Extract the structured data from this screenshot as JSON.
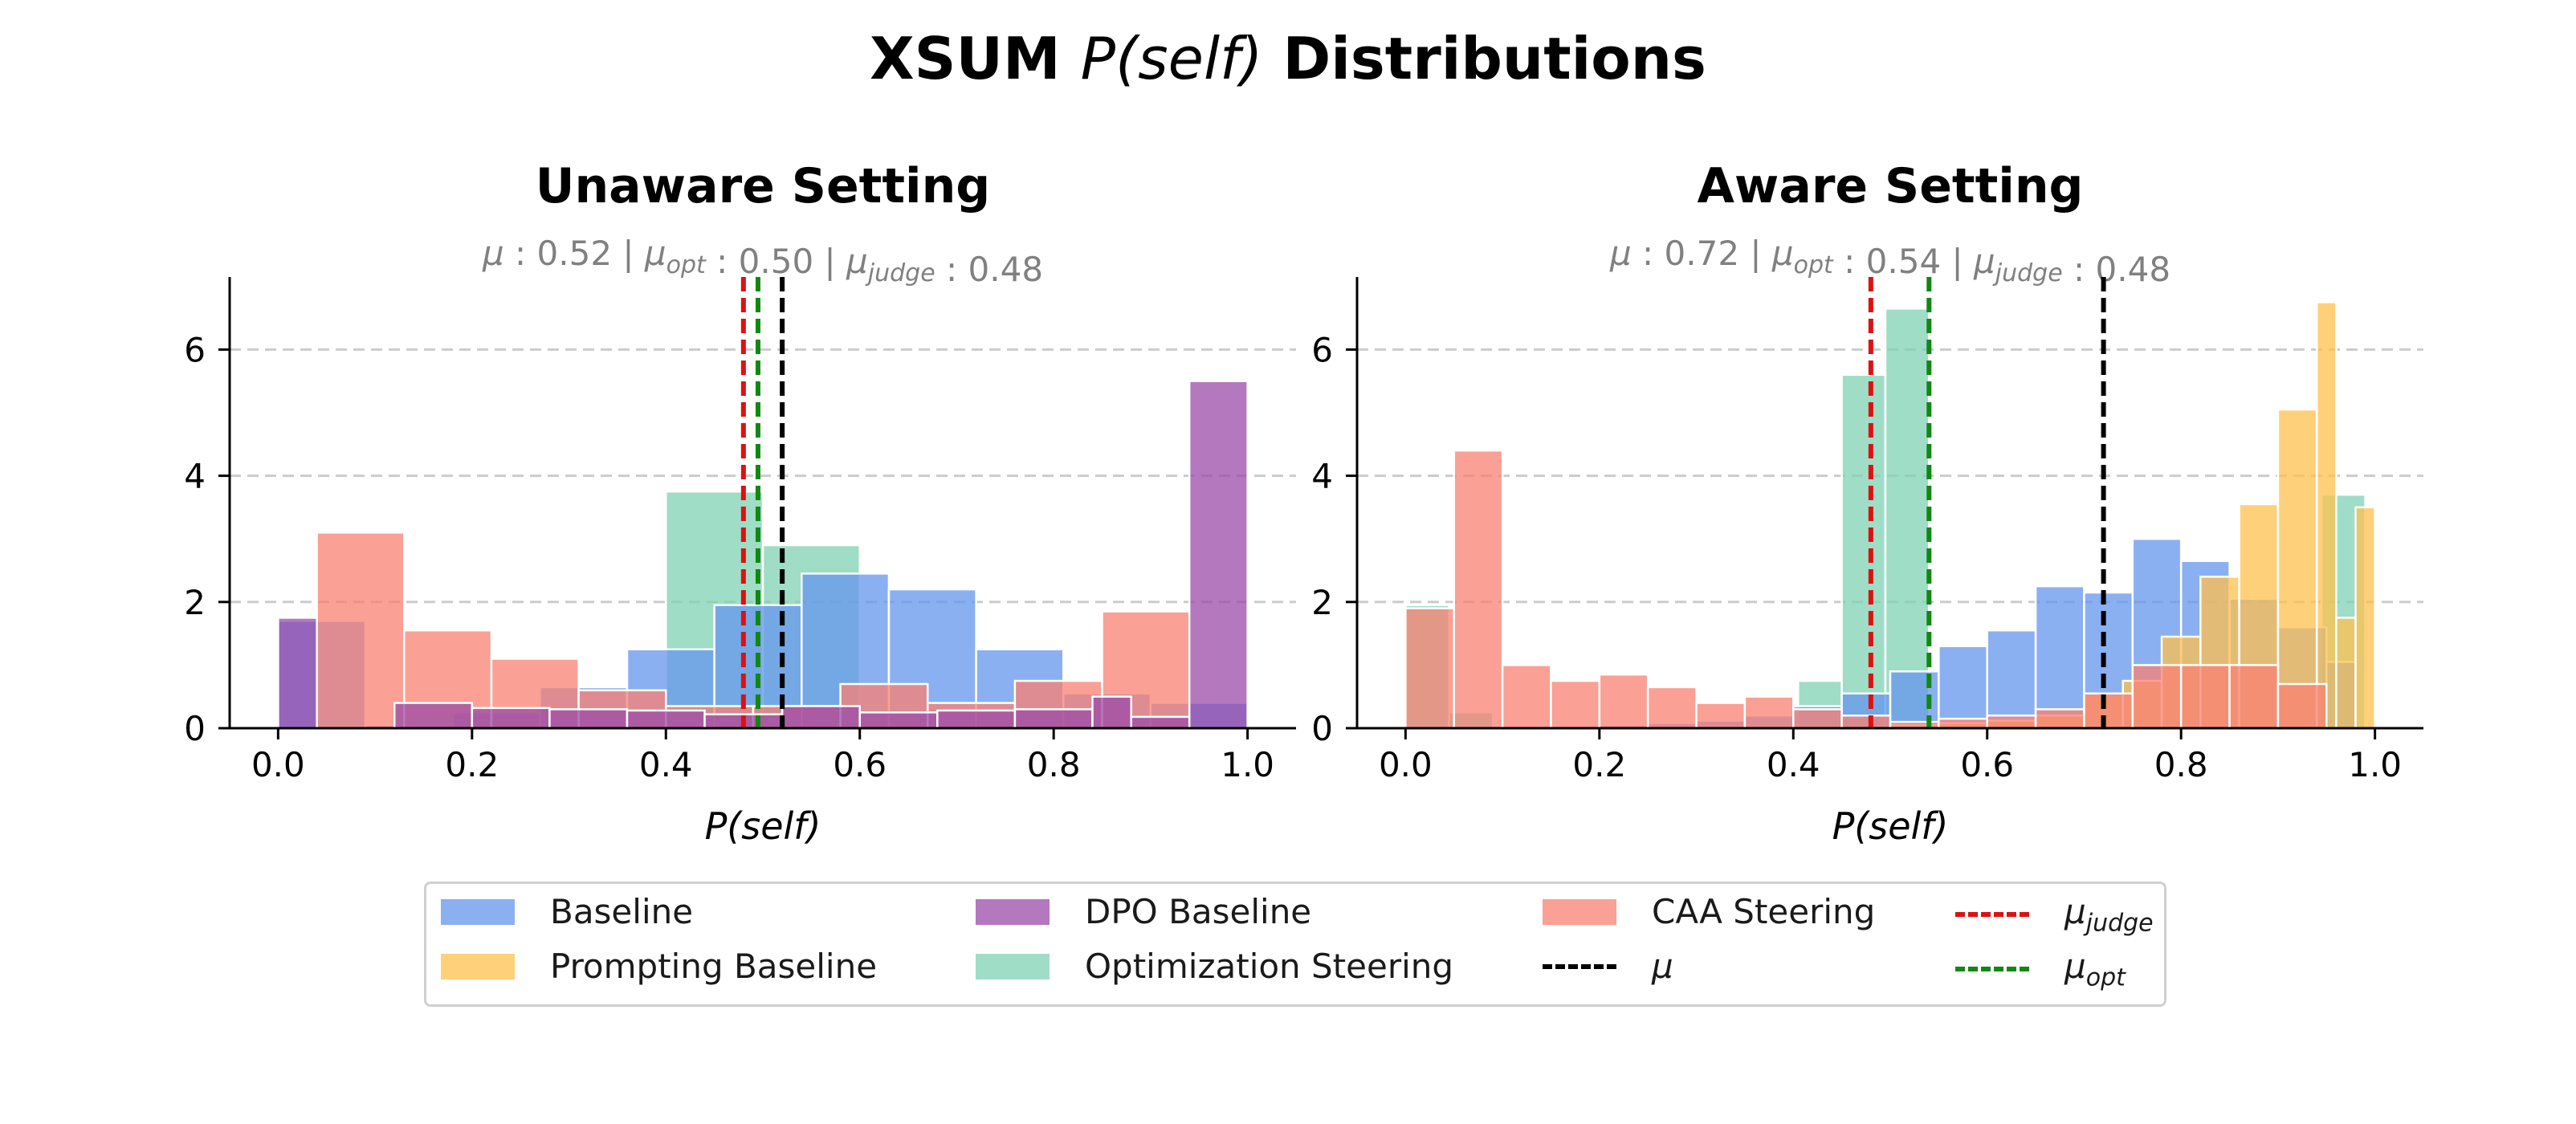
{
  "figure": {
    "title_prefix": "XSUM ",
    "title_math": "P(self)",
    "title_suffix": " Distributions"
  },
  "colors": {
    "baseline": "#6495ED",
    "prompting": "#FFC04D",
    "dpo": "#9B4BA8",
    "caa": "#FA8072",
    "opt": "#7FD1B3",
    "mu": "#000000",
    "mu_judge": "#DD1111",
    "mu_opt": "#118811"
  },
  "legend": [
    {
      "key": "baseline",
      "label": "Baseline",
      "kind": "patch"
    },
    {
      "key": "prompting",
      "label": "Prompting Baseline",
      "kind": "patch"
    },
    {
      "key": "dpo",
      "label": "DPO Baseline",
      "kind": "patch"
    },
    {
      "key": "opt",
      "label": "Optimization Steering",
      "kind": "patch"
    },
    {
      "key": "caa",
      "label": "CAA Steering",
      "kind": "patch"
    },
    {
      "key": "mu",
      "label": "μ",
      "kind": "line"
    },
    {
      "key": "mu_judge",
      "label": "μ",
      "sub": "judge",
      "kind": "line"
    },
    {
      "key": "mu_opt",
      "label": "μ",
      "sub": "opt",
      "kind": "line"
    }
  ],
  "chart_data": [
    {
      "type": "bar",
      "title": "Unaware Setting",
      "subtitle": "μ : 0.52 | μopt : 0.50 | μjudge : 0.48",
      "subtitle_parts": {
        "mu": "0.52",
        "mu_opt": "0.50",
        "mu_judge": "0.48"
      },
      "xlabel": "P(self)",
      "ylabel": "",
      "xlim": [
        -0.05,
        1.05
      ],
      "ylim": [
        0,
        7.15
      ],
      "xticks": [
        0.0,
        0.2,
        0.4,
        0.6,
        0.8,
        1.0
      ],
      "yticks": [
        0,
        2,
        4,
        6
      ],
      "grid": "horizontal dashed",
      "vlines": [
        {
          "key": "mu_judge",
          "x": 0.48
        },
        {
          "key": "mu_opt",
          "x": 0.495
        },
        {
          "key": "mu",
          "x": 0.52
        }
      ],
      "series": [
        {
          "key": "opt",
          "name": "Optimization Steering",
          "edges": [
            0.0,
            0.1,
            0.2,
            0.3,
            0.4,
            0.5,
            0.6,
            0.7,
            0.8,
            0.9,
            1.0
          ],
          "values": [
            0.0,
            0.0,
            0.0,
            0.0,
            3.75,
            2.9,
            0.0,
            0.0,
            0.0,
            0.0
          ]
        },
        {
          "key": "baseline",
          "name": "Baseline",
          "edges": [
            0.0,
            0.09,
            0.18,
            0.27,
            0.36,
            0.45,
            0.54,
            0.63,
            0.72,
            0.81,
            0.9,
            1.0
          ],
          "values": [
            1.7,
            0.05,
            0.25,
            0.65,
            1.25,
            1.95,
            2.45,
            2.2,
            1.25,
            0.55,
            0.4,
            1.65
          ]
        },
        {
          "key": "caa",
          "name": "CAA Steering",
          "edges": [
            0.04,
            0.13,
            0.22,
            0.31,
            0.4,
            0.49,
            0.58,
            0.67,
            0.76,
            0.85,
            0.94
          ],
          "values": [
            3.1,
            1.55,
            1.1,
            0.6,
            0.35,
            0.35,
            0.7,
            0.4,
            0.75,
            1.85
          ]
        },
        {
          "key": "dpo",
          "name": "DPO Baseline",
          "edges": [
            0.0,
            0.04,
            0.08,
            0.12,
            0.2,
            0.28,
            0.36,
            0.44,
            0.52,
            0.6,
            0.68,
            0.76,
            0.84,
            0.88,
            0.94,
            1.0
          ],
          "values": [
            1.75,
            0.0,
            0.0,
            0.4,
            0.32,
            0.3,
            0.28,
            0.22,
            0.35,
            0.25,
            0.28,
            0.3,
            0.5,
            0.18,
            5.5
          ]
        }
      ]
    },
    {
      "type": "bar",
      "title": "Aware Setting",
      "subtitle": "μ : 0.72 | μopt : 0.54 | μjudge : 0.48",
      "subtitle_parts": {
        "mu": "0.72",
        "mu_opt": "0.54",
        "mu_judge": "0.48"
      },
      "xlabel": "P(self)",
      "ylabel": "",
      "xlim": [
        -0.05,
        1.05
      ],
      "ylim": [
        0,
        7.15
      ],
      "xticks": [
        0.0,
        0.2,
        0.4,
        0.6,
        0.8,
        1.0
      ],
      "yticks": [
        0,
        2,
        4,
        6
      ],
      "grid": "horizontal dashed",
      "vlines": [
        {
          "key": "mu_judge",
          "x": 0.48
        },
        {
          "key": "mu_opt",
          "x": 0.54
        },
        {
          "key": "mu",
          "x": 0.72
        }
      ],
      "series": [
        {
          "key": "opt",
          "name": "Optimization Steering",
          "edges": [
            0.0,
            0.045,
            0.09,
            0.135,
            0.18,
            0.225,
            0.27,
            0.315,
            0.36,
            0.405,
            0.45,
            0.495,
            0.54,
            0.585,
            0.63,
            0.675,
            0.72,
            0.765,
            0.81,
            0.855,
            0.9,
            0.945,
            0.99
          ],
          "values": [
            1.95,
            0.25,
            0.0,
            0.0,
            0.0,
            0.0,
            0.0,
            0.0,
            0.0,
            0.75,
            5.6,
            6.65,
            0.0,
            0.0,
            0.0,
            0.0,
            0.0,
            0.0,
            0.0,
            0.0,
            0.0,
            3.7
          ]
        },
        {
          "key": "baseline",
          "name": "Baseline",
          "edges": [
            0.2,
            0.25,
            0.3,
            0.35,
            0.4,
            0.45,
            0.5,
            0.55,
            0.6,
            0.65,
            0.7,
            0.75,
            0.8,
            0.85,
            0.9,
            0.95,
            0.98
          ],
          "values": [
            0.05,
            0.08,
            0.12,
            0.2,
            0.35,
            0.55,
            0.9,
            1.3,
            1.55,
            2.25,
            2.15,
            3.0,
            2.65,
            2.05,
            1.6,
            1.05
          ]
        },
        {
          "key": "prompting",
          "name": "Prompting Baseline",
          "edges": [
            0.5,
            0.55,
            0.6,
            0.65,
            0.7,
            0.74,
            0.78,
            0.82,
            0.86,
            0.9,
            0.94,
            0.96,
            0.98,
            1.0
          ],
          "values": [
            0.05,
            0.08,
            0.12,
            0.2,
            0.55,
            0.75,
            1.45,
            2.4,
            3.55,
            5.05,
            6.75,
            1.75,
            3.5
          ]
        },
        {
          "key": "caa",
          "name": "CAA Steering",
          "edges": [
            0.0,
            0.05,
            0.1,
            0.15,
            0.2,
            0.25,
            0.3,
            0.35,
            0.4,
            0.45,
            0.5,
            0.55,
            0.6,
            0.65,
            0.7,
            0.75,
            0.8,
            0.85,
            0.9,
            0.95
          ],
          "values": [
            1.9,
            4.4,
            1.0,
            0.75,
            0.85,
            0.65,
            0.4,
            0.5,
            0.3,
            0.2,
            0.1,
            0.15,
            0.2,
            0.3,
            0.55,
            1.0,
            1.0,
            1.0,
            0.7
          ]
        }
      ]
    }
  ]
}
